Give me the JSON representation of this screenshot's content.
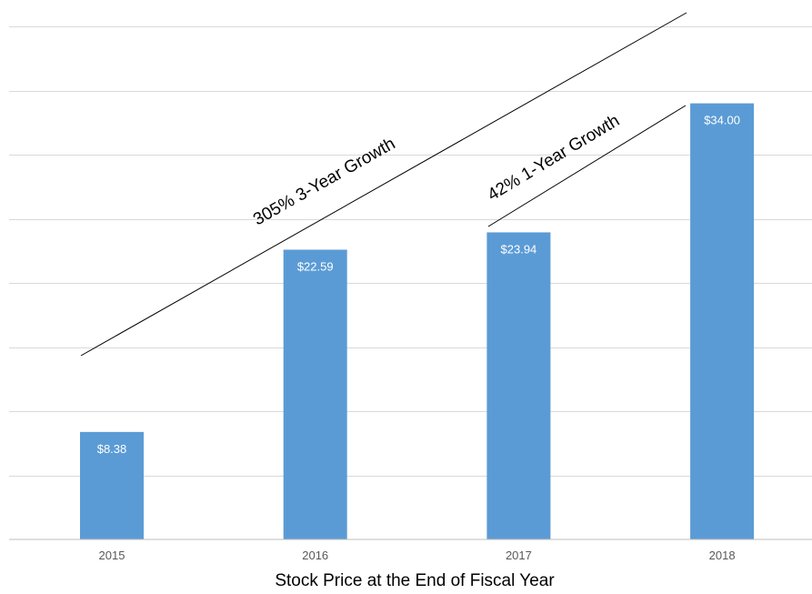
{
  "chart_data": {
    "type": "bar",
    "categories": [
      "2015",
      "2016",
      "2017",
      "2018"
    ],
    "values": [
      8.38,
      22.59,
      23.94,
      34.0
    ],
    "data_labels": [
      "$8.38",
      "$22.59",
      "$23.94",
      "$34.00"
    ],
    "title": "",
    "xlabel": "Stock Price at the End of Fiscal Year",
    "ylabel": "",
    "ylim": [
      0,
      40
    ],
    "grid": true,
    "legend": "none",
    "bar_color": "#5b9bd5",
    "annotations": [
      {
        "text": "305% 3-Year Growth"
      },
      {
        "text": "42% 1-Year Growth"
      }
    ]
  }
}
